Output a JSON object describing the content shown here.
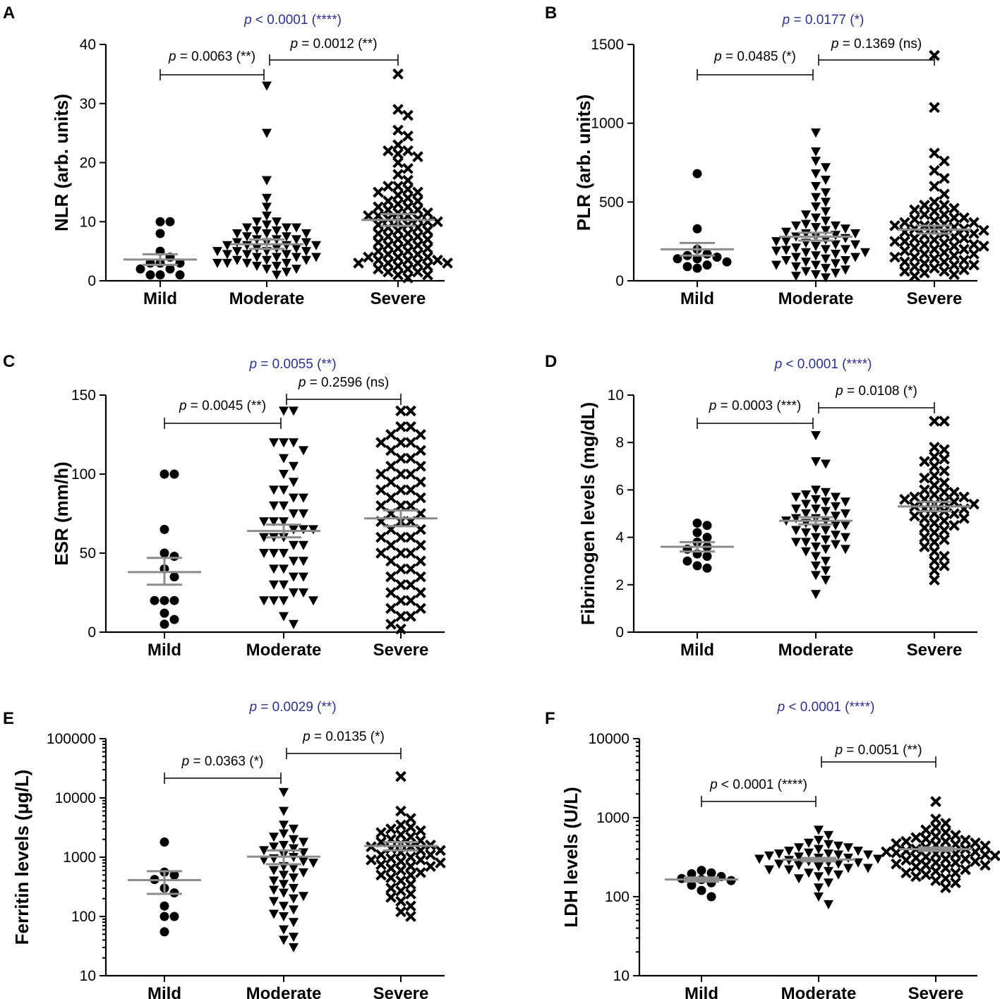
{
  "chart_data": [
    {
      "panel": "A",
      "type": "scatter",
      "scale": "linear",
      "ylabel": "NLR (arb. units)",
      "ylim": [
        0,
        40
      ],
      "yticks": [
        0,
        10,
        20,
        30,
        40
      ],
      "categories": [
        "Mild",
        "Moderate",
        "Severe"
      ],
      "overall_p": "p < 0.0001 (****)",
      "comparisons": [
        {
          "label": "p = 0.0063 (**)",
          "from": "Mild",
          "to": "Moderate",
          "y": 35
        },
        {
          "label": "p = 0.0012 (**)",
          "from": "Moderate",
          "to": "Severe",
          "y": 38
        }
      ],
      "groups": [
        {
          "name": "Mild",
          "marker": "circle",
          "mean": 3.6,
          "sem_low": 2.7,
          "sem_high": 4.5,
          "values": [
            10,
            10,
            8,
            5,
            4,
            3,
            3,
            3,
            2,
            2,
            1,
            1,
            1
          ]
        },
        {
          "name": "Moderate",
          "marker": "triangle-down",
          "mean": 6.2,
          "sem_low": 5.4,
          "sem_high": 7.0,
          "values": [
            33,
            25,
            17,
            14,
            12.5,
            11,
            10,
            10,
            9.5,
            9,
            9,
            9,
            8.5,
            8.5,
            8,
            8,
            8,
            7.5,
            7.5,
            7,
            7,
            7,
            6.5,
            6.5,
            6.5,
            6,
            6,
            6,
            6,
            5.5,
            5.5,
            5.5,
            5,
            5,
            5,
            5,
            4.5,
            4.5,
            4.5,
            4,
            4,
            4,
            4,
            3.5,
            3.5,
            3.5,
            3,
            3,
            3,
            3,
            2.5,
            2.5,
            2,
            2,
            1.5,
            1
          ]
        },
        {
          "name": "Severe",
          "marker": "x",
          "mean": 10.3,
          "sem_low": 9.3,
          "sem_high": 11.3,
          "values": [
            35,
            29,
            28,
            25.5,
            24.5,
            23,
            22,
            22,
            21.5,
            21,
            20,
            19,
            18,
            17,
            16,
            16,
            15.5,
            15,
            15,
            14.5,
            14,
            13.5,
            13.5,
            13,
            12.5,
            12.5,
            12,
            12,
            11.5,
            11.5,
            11,
            11,
            11,
            10.5,
            10.5,
            10,
            10,
            10,
            9.5,
            9.5,
            9,
            9,
            8.5,
            8.5,
            8,
            8,
            7.5,
            7.5,
            7,
            7,
            6.5,
            6.5,
            6,
            6,
            5.5,
            5.5,
            5,
            5,
            4.5,
            4.5,
            4,
            4,
            4,
            3.5,
            3.5,
            3.5,
            3,
            3,
            3,
            3,
            2.5,
            2.5,
            2,
            2,
            1.5,
            1.5,
            1,
            1,
            0.5
          ]
        }
      ]
    },
    {
      "panel": "B",
      "type": "scatter",
      "scale": "linear",
      "ylabel": "PLR (arb. units)",
      "ylim": [
        0,
        1500
      ],
      "yticks": [
        0,
        500,
        1000,
        1500
      ],
      "categories": [
        "Mild",
        "Moderate",
        "Severe"
      ],
      "overall_p": "p = 0.0177 (*)",
      "comparisons": [
        {
          "label": "p = 0.0485 (*)",
          "from": "Mild",
          "to": "Moderate",
          "y": 1320
        },
        {
          "label": "p = 0.1369 (ns)",
          "from": "Moderate",
          "to": "Severe",
          "y": 1420
        }
      ],
      "groups": [
        {
          "name": "Mild",
          "marker": "circle",
          "mean": 200,
          "sem_low": 160,
          "sem_high": 240,
          "values": [
            680,
            330,
            200,
            170,
            160,
            150,
            140,
            140,
            120,
            100,
            90,
            80
          ]
        },
        {
          "name": "Moderate",
          "marker": "triangle-down",
          "mean": 280,
          "sem_low": 255,
          "sem_high": 305,
          "values": [
            940,
            820,
            760,
            720,
            680,
            640,
            600,
            560,
            530,
            500,
            470,
            440,
            420,
            400,
            380,
            360,
            350,
            340,
            330,
            320,
            310,
            300,
            290,
            280,
            270,
            260,
            250,
            240,
            230,
            220,
            210,
            200,
            195,
            190,
            180,
            170,
            160,
            150,
            140,
            130,
            120,
            110,
            100,
            90,
            80,
            70,
            60,
            50,
            40,
            30,
            20,
            350,
            300,
            250,
            200,
            150,
            100,
            280,
            230,
            180,
            130
          ]
        },
        {
          "name": "Severe",
          "marker": "x",
          "mean": 325,
          "sem_low": 300,
          "sem_high": 350,
          "values": [
            1430,
            1100,
            810,
            760,
            700,
            650,
            600,
            550,
            500,
            480,
            460,
            440,
            420,
            400,
            390,
            380,
            370,
            360,
            350,
            340,
            330,
            320,
            310,
            300,
            290,
            280,
            270,
            260,
            250,
            240,
            230,
            220,
            210,
            200,
            190,
            180,
            170,
            160,
            150,
            140,
            130,
            120,
            110,
            100,
            90,
            80,
            70,
            60,
            50,
            40,
            30,
            450,
            400,
            350,
            300,
            250,
            200,
            150,
            100,
            60,
            420,
            370,
            320,
            270,
            220,
            170,
            120,
            480,
            330,
            230
          ]
        }
      ]
    },
    {
      "panel": "C",
      "type": "scatter",
      "scale": "linear",
      "ylabel": "ESR (mm/h)",
      "ylim": [
        0,
        150
      ],
      "yticks": [
        0,
        50,
        100,
        150
      ],
      "categories": [
        "Mild",
        "Moderate",
        "Severe"
      ],
      "overall_p": "p = 0.0055 (**)",
      "comparisons": [
        {
          "label": "p = 0.0045 (**)",
          "from": "Mild",
          "to": "Moderate",
          "y": 133
        },
        {
          "label": "p = 0.2596 (ns)",
          "from": "Moderate",
          "to": "Severe",
          "y": 148
        }
      ],
      "groups": [
        {
          "name": "Mild",
          "marker": "circle",
          "mean": 38,
          "sem_low": 30,
          "sem_high": 47,
          "values": [
            100,
            100,
            65,
            50,
            48,
            40,
            35,
            20,
            20,
            20,
            12,
            8,
            5
          ]
        },
        {
          "name": "Moderate",
          "marker": "triangle-down",
          "mean": 64,
          "sem_low": 60,
          "sem_high": 68,
          "values": [
            140,
            140,
            120,
            120,
            120,
            115,
            110,
            105,
            100,
            95,
            90,
            90,
            85,
            85,
            80,
            80,
            75,
            75,
            70,
            70,
            70,
            65,
            65,
            65,
            60,
            60,
            60,
            55,
            55,
            50,
            50,
            50,
            45,
            45,
            40,
            40,
            35,
            35,
            30,
            30,
            25,
            25,
            20,
            20,
            20,
            20,
            10,
            5
          ]
        },
        {
          "name": "Severe",
          "marker": "x",
          "mean": 72,
          "sem_low": 67,
          "sem_high": 77,
          "values": [
            140,
            140,
            130,
            130,
            125,
            125,
            120,
            120,
            120,
            115,
            115,
            110,
            110,
            105,
            105,
            100,
            100,
            100,
            95,
            95,
            90,
            90,
            90,
            85,
            85,
            80,
            80,
            80,
            75,
            75,
            70,
            70,
            70,
            65,
            65,
            60,
            60,
            60,
            55,
            55,
            50,
            50,
            50,
            45,
            45,
            40,
            40,
            35,
            35,
            30,
            30,
            25,
            25,
            20,
            20,
            15,
            15,
            10,
            10,
            5,
            2
          ]
        }
      ]
    },
    {
      "panel": "D",
      "type": "scatter",
      "scale": "linear",
      "ylabel": "Fibrinogen levels (mg/dL)",
      "ylim": [
        0,
        10
      ],
      "yticks": [
        0,
        2,
        4,
        6,
        8,
        10
      ],
      "categories": [
        "Mild",
        "Moderate",
        "Severe"
      ],
      "overall_p": "p < 0.0001 (****)",
      "comparisons": [
        {
          "label": "p = 0.0003 (***)",
          "from": "Mild",
          "to": "Moderate",
          "y": 8.9
        },
        {
          "label": "p = 0.0108 (*)",
          "from": "Moderate",
          "to": "Severe",
          "y": 9.5
        }
      ],
      "groups": [
        {
          "name": "Mild",
          "marker": "circle",
          "mean": 3.6,
          "sem_low": 3.4,
          "sem_high": 3.8,
          "values": [
            4.6,
            4.5,
            4.2,
            4.0,
            3.8,
            3.6,
            3.5,
            3.3,
            3.2,
            3.0,
            2.8,
            2.7
          ]
        },
        {
          "name": "Moderate",
          "marker": "triangle-down",
          "mean": 4.7,
          "sem_low": 4.55,
          "sem_high": 4.85,
          "values": [
            8.3,
            7.2,
            7.1,
            6.0,
            5.9,
            5.8,
            5.7,
            5.6,
            5.5,
            5.4,
            5.3,
            5.2,
            5.1,
            5.0,
            4.9,
            4.8,
            4.7,
            4.7,
            4.6,
            4.5,
            4.4,
            4.3,
            4.2,
            4.1,
            4.0,
            3.9,
            3.8,
            3.7,
            3.6,
            3.5,
            3.4,
            3.2,
            3.0,
            2.8,
            2.6,
            2.4,
            2.2,
            1.6,
            5.5,
            5.0,
            4.5,
            4.0,
            3.5,
            5.2,
            4.8,
            4.3,
            3.8,
            5.7
          ]
        },
        {
          "name": "Severe",
          "marker": "x",
          "mean": 5.3,
          "sem_low": 5.1,
          "sem_high": 5.5,
          "values": [
            8.9,
            8.9,
            7.8,
            7.7,
            7.4,
            7.3,
            7.2,
            7.0,
            6.8,
            6.6,
            6.5,
            6.3,
            6.2,
            6.0,
            5.9,
            5.8,
            5.7,
            5.6,
            5.5,
            5.4,
            5.3,
            5.2,
            5.1,
            5.0,
            4.9,
            4.8,
            4.7,
            4.6,
            4.5,
            4.4,
            4.3,
            4.2,
            4.0,
            3.9,
            3.8,
            3.6,
            3.4,
            3.2,
            3.0,
            2.8,
            2.6,
            2.2,
            5.6,
            5.4,
            5.2,
            5.0,
            4.8,
            5.9,
            5.7,
            5.5
          ]
        }
      ]
    },
    {
      "panel": "E",
      "type": "scatter",
      "scale": "log",
      "ylabel": "Ferritin levels (μg/L)",
      "ylim": [
        10,
        100000
      ],
      "yticks": [
        10,
        100,
        1000,
        10000,
        100000
      ],
      "categories": [
        "Mild",
        "Moderate",
        "Severe"
      ],
      "overall_p": "p = 0.0029 (**)",
      "comparisons": [
        {
          "label": "p = 0.0363 (*)",
          "from": "Mild",
          "to": "Moderate",
          "y": 26000
        },
        {
          "label": "p = 0.0135 (*)",
          "from": "Moderate",
          "to": "Severe",
          "y": 55000
        }
      ],
      "groups": [
        {
          "name": "Mild",
          "marker": "circle",
          "mean": 410,
          "sem_low": 240,
          "sem_high": 580,
          "values": [
            1800,
            560,
            500,
            420,
            300,
            250,
            150,
            100,
            100,
            55
          ]
        },
        {
          "name": "Moderate",
          "marker": "triangle-down",
          "mean": 1020,
          "sem_low": 760,
          "sem_high": 1300,
          "values": [
            12500,
            6000,
            3500,
            3000,
            2500,
            2200,
            2000,
            1800,
            1600,
            1500,
            1400,
            1300,
            1200,
            1100,
            1000,
            950,
            900,
            850,
            800,
            700,
            650,
            600,
            550,
            500,
            450,
            400,
            350,
            300,
            280,
            250,
            220,
            200,
            180,
            150,
            130,
            110,
            100,
            80,
            60,
            45,
            40,
            30
          ]
        },
        {
          "name": "Severe",
          "marker": "x",
          "mean": 1550,
          "sem_low": 1300,
          "sem_high": 1800,
          "values": [
            23000,
            6000,
            4500,
            3500,
            3200,
            3000,
            2800,
            2600,
            2400,
            2200,
            2000,
            1900,
            1800,
            1700,
            1600,
            1500,
            1400,
            1300,
            1200,
            1100,
            1000,
            950,
            900,
            850,
            800,
            750,
            700,
            650,
            600,
            550,
            500,
            450,
            400,
            350,
            300,
            270,
            240,
            210,
            180,
            150,
            120,
            100,
            1500,
            1300,
            1100,
            900,
            700,
            500
          ]
        }
      ]
    },
    {
      "panel": "F",
      "type": "scatter",
      "scale": "log",
      "ylabel": "LDH levels (U/L)",
      "ylim": [
        10,
        10000
      ],
      "yticks": [
        10,
        100,
        1000,
        10000
      ],
      "categories": [
        "Mild",
        "Moderate",
        "Severe"
      ],
      "overall_p": "p < 0.0001 (****)",
      "comparisons": [
        {
          "label": "p < 0.0001 (****)",
          "from": "Mild",
          "to": "Moderate",
          "y": 1500
        },
        {
          "label": "p = 0.0051 (**)",
          "from": "Moderate",
          "to": "Severe",
          "y": 4200
        }
      ],
      "groups": [
        {
          "name": "Mild",
          "marker": "circle",
          "mean": 165,
          "sem_low": 155,
          "sem_high": 175,
          "values": [
            215,
            200,
            195,
            180,
            170,
            165,
            160,
            150,
            140,
            120,
            100
          ]
        },
        {
          "name": "Moderate",
          "marker": "triangle-down",
          "mean": 295,
          "sem_low": 280,
          "sem_high": 310,
          "values": [
            700,
            600,
            520,
            480,
            460,
            440,
            420,
            400,
            380,
            360,
            350,
            340,
            330,
            320,
            310,
            300,
            290,
            280,
            270,
            260,
            250,
            240,
            230,
            220,
            210,
            200,
            190,
            180,
            170,
            150,
            130,
            100,
            80,
            420,
            380,
            340,
            300,
            260,
            220,
            350,
            310,
            270,
            230
          ]
        },
        {
          "name": "Severe",
          "marker": "x",
          "mean": 400,
          "sem_low": 380,
          "sem_high": 420,
          "values": [
            1600,
            960,
            850,
            750,
            700,
            650,
            600,
            580,
            560,
            540,
            520,
            500,
            480,
            460,
            440,
            420,
            400,
            390,
            380,
            370,
            360,
            350,
            340,
            330,
            320,
            310,
            300,
            290,
            280,
            270,
            260,
            250,
            240,
            230,
            220,
            210,
            200,
            190,
            180,
            170,
            160,
            150,
            130,
            500,
            450,
            400,
            350,
            300,
            250,
            200,
            470,
            370,
            270
          ]
        }
      ]
    }
  ]
}
